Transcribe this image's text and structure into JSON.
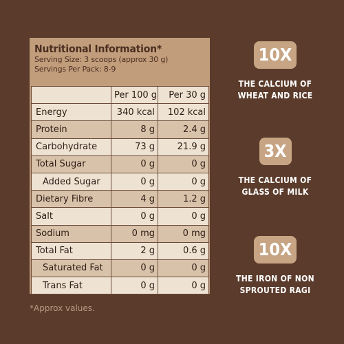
{
  "panel": {
    "title": "Nutritional Information*",
    "serving_size": "Serving Size: 3 scoops (approx 30 g)",
    "servings_per_pack": "Servings Per Pack: 8-9"
  },
  "table": {
    "col1": "Per 100 g",
    "col2": "Per 30 g",
    "rows": [
      {
        "label": "Energy",
        "v1": "340 kcal",
        "v2": "102 kcal"
      },
      {
        "label": "Protein",
        "v1": "8 g",
        "v2": "2.4 g"
      },
      {
        "label": "Carbohydrate",
        "v1": "73 g",
        "v2": "21.9 g"
      },
      {
        "label": "Total Sugar",
        "v1": "0 g",
        "v2": "0 g"
      },
      {
        "label": "Added Sugar",
        "v1": "0 g",
        "v2": "0 g"
      },
      {
        "label": "Dietary Fibre",
        "v1": "4 g",
        "v2": "1.2 g"
      },
      {
        "label": "Salt",
        "v1": "0 g",
        "v2": "0 g"
      },
      {
        "label": "Sodium",
        "v1": "0 mg",
        "v2": "0 mg"
      },
      {
        "label": "Total Fat",
        "v1": "2 g",
        "v2": "0.6 g"
      },
      {
        "label": "Saturated Fat",
        "v1": "0 g",
        "v2": "0 g"
      },
      {
        "label": "Trans Fat",
        "v1": "0 g",
        "v2": "0 g"
      }
    ]
  },
  "footnote": "*Approx values.",
  "claims": [
    {
      "badge": "10X",
      "line1": "THE CALCIUM OF",
      "line2": "WHEAT AND RICE"
    },
    {
      "badge": "3X",
      "line1": "THE CALCIUM OF",
      "line2": "GLASS OF MILK"
    },
    {
      "badge": "10X",
      "line1": "THE IRON OF NON",
      "line2": "SPROUTED RAGI"
    }
  ],
  "colors": {
    "background": "#5b3b2b",
    "panel": "#c19d7b",
    "badge": "#c7a584",
    "row_light": "#eee2d3",
    "row_dark": "#d9c2aa"
  }
}
